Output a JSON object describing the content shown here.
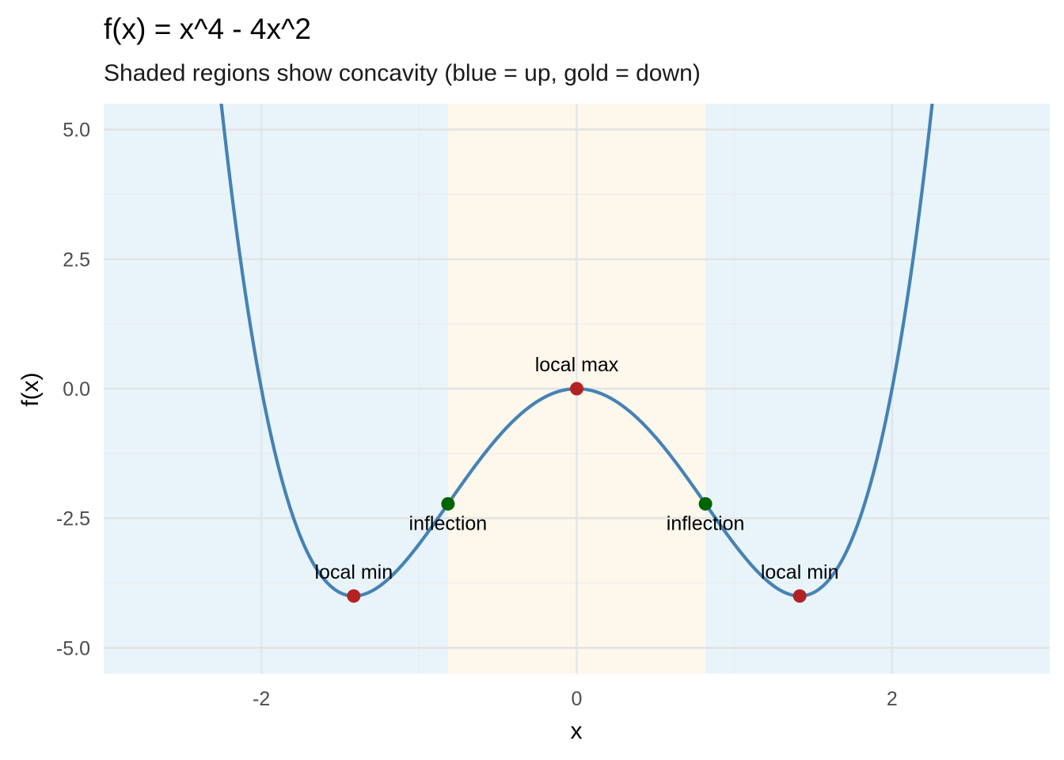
{
  "chart_data": {
    "type": "line",
    "title": "f(x) = x^4 - 4x^2",
    "subtitle": "Shaded regions show concavity (blue = up, gold = down)",
    "xlabel": "x",
    "ylabel": "f(x)",
    "xlim": [
      -3.0,
      3.0
    ],
    "ylim": [
      -5.5,
      5.5
    ],
    "x_ticks": [
      -2,
      0,
      2
    ],
    "x_tick_labels": [
      "-2",
      "0",
      "2"
    ],
    "y_ticks": [
      -5.0,
      -2.5,
      0.0,
      2.5,
      5.0
    ],
    "y_tick_labels": [
      "-5.0",
      "-2.5",
      "0.0",
      "2.5",
      "5.0"
    ],
    "grid": true,
    "function": {
      "coefficients_descending": [
        1,
        0,
        -4,
        0,
        0
      ],
      "x_range": [
        -3.0,
        3.0
      ],
      "color": "#4682b4"
    },
    "regions": [
      {
        "x_from": -3.0,
        "x_to": -0.8165,
        "concavity": "up",
        "color": "#e8f4fa"
      },
      {
        "x_from": -0.8165,
        "x_to": 0.8165,
        "concavity": "down",
        "color": "#fdf7ec"
      },
      {
        "x_from": 0.8165,
        "x_to": 3.0,
        "concavity": "up",
        "color": "#e8f4fa"
      }
    ],
    "points": [
      {
        "x": -1.4142,
        "y": -4.0,
        "label": "local min",
        "color": "#b22222",
        "label_pos": "above"
      },
      {
        "x": -0.8165,
        "y": -2.2222,
        "label": "inflection",
        "color": "#006400",
        "label_pos": "below"
      },
      {
        "x": 0.0,
        "y": 0.0,
        "label": "local max",
        "color": "#b22222",
        "label_pos": "above"
      },
      {
        "x": 0.8165,
        "y": -2.2222,
        "label": "inflection",
        "color": "#006400",
        "label_pos": "below"
      },
      {
        "x": 1.4142,
        "y": -4.0,
        "label": "local min",
        "color": "#b22222",
        "label_pos": "above"
      }
    ]
  }
}
